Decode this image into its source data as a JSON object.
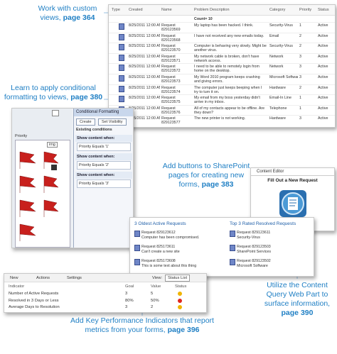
{
  "callouts": [
    {
      "text": "Work with custom views,",
      "page": "page 364"
    },
    {
      "text": "Learn to apply conditional formatting to views,",
      "page": "page 380"
    },
    {
      "text": "Add buttons to SharePoint pages for creating new forms,",
      "page": "page 383"
    },
    {
      "text": "Utilize the Content Query Web Part to surface information,",
      "page": "page 390"
    },
    {
      "text": "Add Key Performance Indicators that report metrics from your forms,",
      "page": "page 396"
    }
  ],
  "list_view": {
    "columns": [
      "Type",
      "Created",
      "Name",
      "Problem Description",
      "Category",
      "Priority",
      "Status"
    ],
    "count": "Count= 10",
    "rows": [
      [
        "8/25/2011 12:00 AM",
        "Request 829123569",
        "My laptop has been hacked. I think.",
        "Security-Virus",
        "1",
        "Active"
      ],
      [
        "8/25/2011 12:00 AM",
        "Request 829123568",
        "I have not received any new emails today.",
        "Email",
        "2",
        "Active"
      ],
      [
        "8/25/2011 12:00 AM",
        "Request 829123570",
        "Computer is behaving very slowly. Might be another virus.",
        "Security-Virus",
        "2",
        "Active"
      ],
      [
        "8/25/2011 12:00 AM",
        "Request 829123571",
        "My network cable is broken, don't have network access.",
        "Network",
        "3",
        "Active"
      ],
      [
        "8/25/2011 12:00 AM",
        "Request 829123572",
        "I need to be able to remotely login from home on the desktop.",
        "Network",
        "3",
        "Active"
      ],
      [
        "8/25/2011 12:00 AM",
        "Request 829123573",
        "My Word 2010 program keeps crashing and giving errors.",
        "Microsoft Software",
        "3",
        "Active"
      ],
      [
        "8/25/2011 12:00 AM",
        "Request 829123574",
        "The computer just keeps beeping when I try to turn it on.",
        "Hardware",
        "2",
        "Active"
      ],
      [
        "8/25/2011 12:00 AM",
        "Request 829123575",
        "My email from my boss yesterday didn't arrive in my inbox.",
        "Email-In Line",
        "1",
        "Active"
      ],
      [
        "8/25/2011 12:00 AM",
        "Request 829123576",
        "All of my contacts appear to be offline. Are they down?",
        "Telephone",
        "1",
        "Active"
      ],
      [
        "8/25/2011 12:00 AM",
        "Request 829123577",
        "The new printer is not working.",
        "Hardware",
        "3",
        "Active"
      ]
    ]
  },
  "conditional_formatting": {
    "field": "Priority",
    "image_label": "img",
    "pane_title": "Conditional Formatting",
    "buttons": [
      "Create",
      "Set Visibility"
    ],
    "section": "Existing conditions",
    "conditions": [
      {
        "title": "Show content when:",
        "rule": "Priority Equals '1'"
      },
      {
        "title": "Show content when:",
        "rule": "Priority Equals '2'"
      },
      {
        "title": "Show content when:",
        "rule": "Priority Equals '3'"
      }
    ]
  },
  "content_editor": {
    "title": "Content Editor",
    "button": "Fill Out a New Request"
  },
  "content_query": {
    "groups": [
      {
        "title": "3 Oldest Active Requests",
        "items": [
          {
            "name": "Request 829123612",
            "detail": "Computer has been compromised."
          },
          {
            "name": "Request 825173611",
            "detail": "Can't create a new site"
          },
          {
            "name": "Request 825173608",
            "detail": "This is some text about this thing"
          }
        ]
      },
      {
        "title": "Top 3 Rated Resolved Requests",
        "items": [
          {
            "name": "Request 829123611",
            "detail": "Security-Virus"
          },
          {
            "name": "Request 829123503",
            "detail": "SharePoint Services"
          },
          {
            "name": "Request 829123502",
            "detail": "Microsoft Software"
          }
        ]
      }
    ]
  },
  "kpi": {
    "toolbar": [
      "New",
      "Actions",
      "Settings"
    ],
    "view_label": "View:",
    "view": "Status List",
    "columns": [
      "Indicator",
      "Goal",
      "Value",
      "Status"
    ],
    "rows": [
      [
        "Number of Active Requests",
        "3",
        "5"
      ],
      [
        "Resolved in 3 Days or Less",
        "80%",
        "50%"
      ],
      [
        "Average Days to Resolution",
        "3",
        "2"
      ]
    ]
  }
}
